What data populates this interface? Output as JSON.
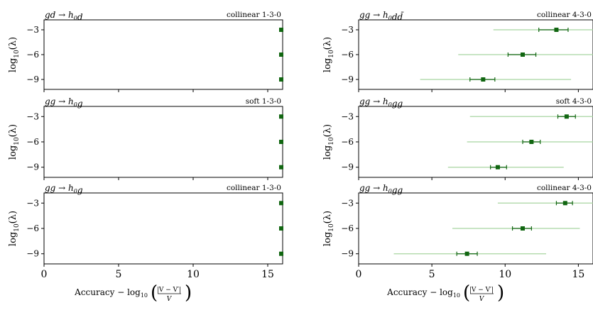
{
  "figure": {
    "xlabel": {
      "prefix": "Accuracy − log",
      "sub": "10",
      "numerator": "|V − V′|",
      "denominator": "V"
    },
    "ylabel": {
      "main": "log",
      "sub": "10",
      "arg": "(λ)"
    }
  },
  "chart_data": [
    {
      "type": "scatter",
      "process": "gd → h0d",
      "config": "collinear 1-3-0",
      "x_ticks": [
        0,
        5,
        10,
        15
      ],
      "y_ticks": [
        -3,
        -6,
        -9
      ],
      "xlim": [
        0,
        16
      ],
      "ylim": [
        -10.2,
        -1.8
      ],
      "points": [
        {
          "y": -3,
          "x": 16,
          "err_inner": [
            16,
            16
          ],
          "err_outer": [
            16,
            16
          ]
        },
        {
          "y": -6,
          "x": 16,
          "err_inner": [
            16,
            16
          ],
          "err_outer": [
            16,
            16
          ]
        },
        {
          "y": -9,
          "x": 16,
          "err_inner": [
            16,
            16
          ],
          "err_outer": [
            16,
            16
          ]
        }
      ]
    },
    {
      "type": "scatter",
      "process": "gg → h0dd̄",
      "config": "collinear 4-3-0",
      "x_ticks": [
        0,
        5,
        10,
        15
      ],
      "y_ticks": [
        -3,
        -6,
        -9
      ],
      "xlim": [
        0,
        16
      ],
      "ylim": [
        -10.2,
        -1.8
      ],
      "points": [
        {
          "y": -3,
          "x": 13.5,
          "err_inner": [
            12.3,
            14.3
          ],
          "err_outer": [
            9.2,
            16
          ]
        },
        {
          "y": -6,
          "x": 11.2,
          "err_inner": [
            10.2,
            12.1
          ],
          "err_outer": [
            6.8,
            16
          ]
        },
        {
          "y": -9,
          "x": 8.5,
          "err_inner": [
            7.6,
            9.3
          ],
          "err_outer": [
            4.2,
            14.5
          ]
        }
      ]
    },
    {
      "type": "scatter",
      "process": "gg → h0g",
      "config": "soft 1-3-0",
      "x_ticks": [
        0,
        5,
        10,
        15
      ],
      "y_ticks": [
        -3,
        -6,
        -9
      ],
      "xlim": [
        0,
        16
      ],
      "ylim": [
        -10.2,
        -1.8
      ],
      "points": [
        {
          "y": -3,
          "x": 16,
          "err_inner": [
            16,
            16
          ],
          "err_outer": [
            16,
            16
          ]
        },
        {
          "y": -6,
          "x": 16,
          "err_inner": [
            16,
            16
          ],
          "err_outer": [
            16,
            16
          ]
        },
        {
          "y": -9,
          "x": 16,
          "err_inner": [
            16,
            16
          ],
          "err_outer": [
            16,
            16
          ]
        }
      ]
    },
    {
      "type": "scatter",
      "process": "gg → h0gg",
      "config": "soft 4-3-0",
      "x_ticks": [
        0,
        5,
        10,
        15
      ],
      "y_ticks": [
        -3,
        -6,
        -9
      ],
      "xlim": [
        0,
        16
      ],
      "ylim": [
        -10.2,
        -1.8
      ],
      "points": [
        {
          "y": -3,
          "x": 14.2,
          "err_inner": [
            13.6,
            14.8
          ],
          "err_outer": [
            7.6,
            16
          ]
        },
        {
          "y": -6,
          "x": 11.8,
          "err_inner": [
            11.2,
            12.4
          ],
          "err_outer": [
            7.4,
            16
          ]
        },
        {
          "y": -9,
          "x": 9.5,
          "err_inner": [
            9.0,
            10.1
          ],
          "err_outer": [
            6.1,
            14.0
          ]
        }
      ]
    },
    {
      "type": "scatter",
      "process": "gg → h0g",
      "config": "collinear 1-3-0",
      "x_ticks": [
        0,
        5,
        10,
        15
      ],
      "y_ticks": [
        -3,
        -6,
        -9
      ],
      "xlim": [
        0,
        16
      ],
      "ylim": [
        -10.2,
        -1.8
      ],
      "points": [
        {
          "y": -3,
          "x": 16,
          "err_inner": [
            16,
            16
          ],
          "err_outer": [
            16,
            16
          ]
        },
        {
          "y": -6,
          "x": 16,
          "err_inner": [
            16,
            16
          ],
          "err_outer": [
            16,
            16
          ]
        },
        {
          "y": -9,
          "x": 16,
          "err_inner": [
            16,
            16
          ],
          "err_outer": [
            16,
            16
          ]
        }
      ]
    },
    {
      "type": "scatter",
      "process": "gg → h0gg",
      "config": "collinear 4-3-0",
      "x_ticks": [
        0,
        5,
        10,
        15
      ],
      "y_ticks": [
        -3,
        -6,
        -9
      ],
      "xlim": [
        0,
        16
      ],
      "ylim": [
        -10.2,
        -1.8
      ],
      "points": [
        {
          "y": -3,
          "x": 14.1,
          "err_inner": [
            13.5,
            14.6
          ],
          "err_outer": [
            9.5,
            16
          ]
        },
        {
          "y": -6,
          "x": 11.2,
          "err_inner": [
            10.5,
            11.8
          ],
          "err_outer": [
            6.4,
            15.1
          ]
        },
        {
          "y": -9,
          "x": 7.4,
          "err_inner": [
            6.7,
            8.1
          ],
          "err_outer": [
            2.4,
            12.8
          ]
        }
      ]
    }
  ],
  "colors": {
    "marker": "#116611",
    "inner_error": "#116611",
    "outer_error": "#a8d5a0"
  }
}
